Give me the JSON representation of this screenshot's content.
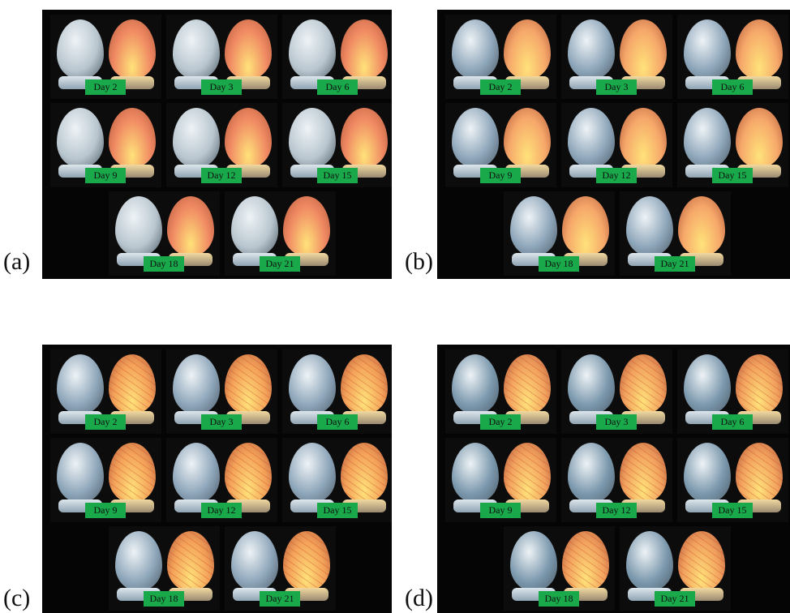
{
  "panels": [
    {
      "letter": "(a)",
      "unlit": "#b9c6cf",
      "lit": "#f08a63",
      "veins": false,
      "days": [
        "Day 2",
        "Day 3",
        "Day 6",
        "Day 9",
        "Day 12",
        "Day 15",
        "Day 18",
        "Day 21"
      ]
    },
    {
      "letter": "(b)",
      "unlit": "#8ea6ba",
      "lit": "#f6a86a",
      "veins": false,
      "days": [
        "Day 2",
        "Day 3",
        "Day 6",
        "Day 9",
        "Day 12",
        "Day 15",
        "Day 18",
        "Day 21"
      ]
    },
    {
      "letter": "(c)",
      "unlit": "#8ea6ba",
      "lit": "#f4a259",
      "veins": true,
      "days": [
        "Day 2",
        "Day 3",
        "Day 6",
        "Day 9",
        "Day 12",
        "Day 15",
        "Day 18",
        "Day 21"
      ]
    },
    {
      "letter": "(d)",
      "unlit": "#7b98ad",
      "lit": "#f2a25e",
      "veins": true,
      "days": [
        "Day 2",
        "Day 3",
        "Day 6",
        "Day 9",
        "Day 12",
        "Day 15",
        "Day 18",
        "Day 21"
      ]
    }
  ],
  "colors": {
    "label_bg": "#19a84a",
    "panel_bg": "#050505"
  }
}
